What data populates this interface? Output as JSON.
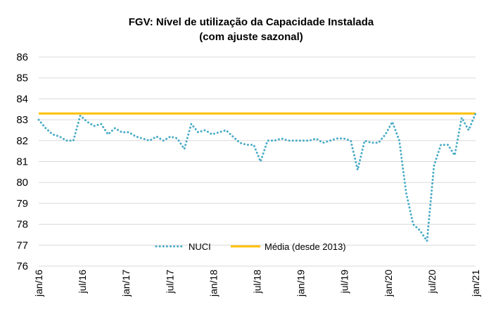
{
  "chart_data": {
    "type": "line",
    "title": "FGV: Nível de utilização da Capacidade Instalada",
    "subtitle": "(com ajuste sazonal)",
    "xlabel": "",
    "ylabel": "",
    "ylim": [
      76,
      86
    ],
    "yticks": [
      "76",
      "77",
      "78",
      "79",
      "80",
      "81",
      "82",
      "83",
      "84",
      "85",
      "86"
    ],
    "xticks": [
      "jan/16",
      "jul/16",
      "jan/17",
      "jul/17",
      "jan/18",
      "jul/18",
      "jan/19",
      "jul/19",
      "jan/20",
      "jul/20",
      "jan/21"
    ],
    "grid": "horizontal",
    "legend_position": "bottom-center",
    "series": [
      {
        "name": "NUCI",
        "style": "dotted",
        "color": "#4bacc6",
        "values": [
          83.0,
          82.6,
          82.3,
          82.2,
          82.0,
          82.0,
          83.2,
          82.9,
          82.7,
          82.8,
          82.3,
          82.6,
          82.4,
          82.4,
          82.2,
          82.1,
          82.0,
          82.2,
          82.0,
          82.2,
          82.1,
          81.6,
          82.8,
          82.4,
          82.5,
          82.3,
          82.4,
          82.5,
          82.2,
          81.9,
          81.8,
          81.8,
          81.0,
          82.0,
          82.0,
          82.1,
          82.0,
          82.0,
          82.0,
          82.0,
          82.1,
          81.9,
          82.0,
          82.1,
          82.1,
          82.0,
          80.6,
          82.0,
          81.9,
          81.9,
          82.3,
          82.9,
          82.0,
          79.5,
          78.0,
          77.7,
          77.2,
          80.8,
          81.8,
          81.8,
          81.3,
          83.1,
          82.5,
          83.3
        ]
      },
      {
        "name": "Média (desde 2013)",
        "style": "solid",
        "color": "#ffc000",
        "values": [
          83.3
        ]
      }
    ]
  }
}
